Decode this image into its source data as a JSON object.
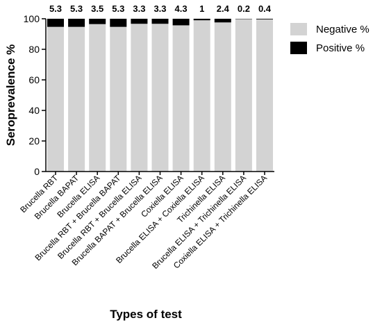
{
  "chart_data": {
    "type": "bar",
    "stacked": true,
    "ylabel": "Seroprevalence %",
    "xlabel": "Types of test",
    "ylim": [
      0,
      100
    ],
    "yticks": [
      0,
      20,
      40,
      60,
      80,
      100
    ],
    "categories": [
      "Brucella RBT",
      "Brucella BAPAT",
      "Brucella ELISA",
      "Brucella RBT + Brucella BAPAT",
      "Brucella RBT + Brucella ELISA",
      "Brucella BAPAT + Brucella ELISA",
      "Coxiella ELISA",
      "Brucella  ELISA + Coxiella ELISA",
      "Trichinella ELISA",
      "Brucella ELISA + Trichinella ELISA",
      "Coxiella ELISA + Trichinella ELISA"
    ],
    "series": [
      {
        "name": "Negative %",
        "color": "#d3d3d3",
        "values": [
          94.7,
          94.7,
          96.5,
          94.7,
          96.7,
          96.7,
          95.7,
          99,
          97.6,
          99.8,
          99.6
        ]
      },
      {
        "name": "Positive %",
        "color": "#000000",
        "values": [
          5.3,
          5.3,
          3.5,
          5.3,
          3.3,
          3.3,
          4.3,
          1,
          2.4,
          0.2,
          0.4
        ]
      }
    ],
    "data_labels": [
      "5.3",
      "5.3",
      "3.5",
      "5.3",
      "3.3",
      "3.3",
      "4.3",
      "1",
      "2.4",
      "0.2",
      "0.4"
    ],
    "legend_position": "top-right",
    "grid": false
  }
}
